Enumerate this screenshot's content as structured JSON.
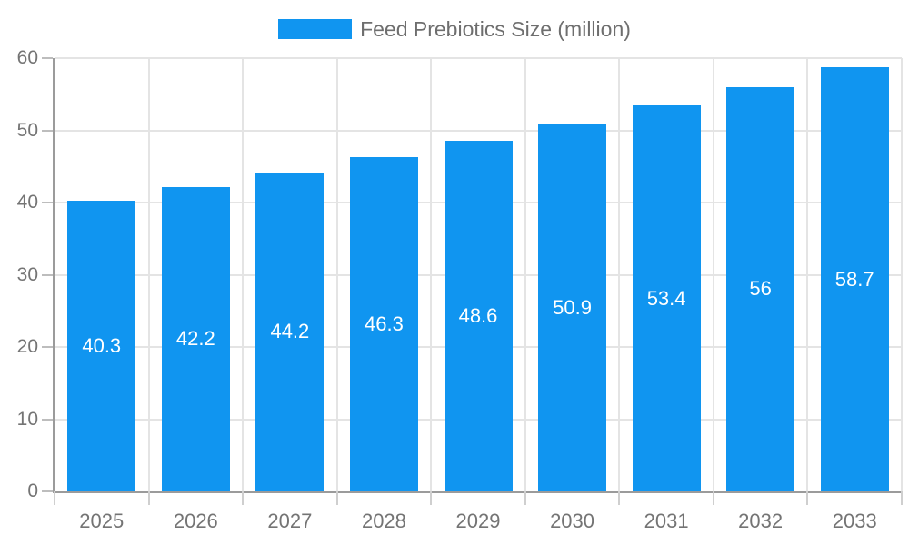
{
  "legend": {
    "label": "Feed Prebiotics Size (million)",
    "swatch_color": "#1095F0"
  },
  "chart_data": {
    "type": "bar",
    "title": "",
    "xlabel": "",
    "ylabel": "",
    "categories": [
      "2025",
      "2026",
      "2027",
      "2028",
      "2029",
      "2030",
      "2031",
      "2032",
      "2033"
    ],
    "series": [
      {
        "name": "Feed Prebiotics Size (million)",
        "values": [
          40.3,
          42.2,
          44.2,
          46.3,
          48.6,
          50.9,
          53.4,
          56,
          58.7
        ],
        "value_labels": [
          "40.3",
          "42.2",
          "44.2",
          "46.3",
          "48.6",
          "50.9",
          "53.4",
          "56",
          "58.7"
        ]
      }
    ],
    "ylim": [
      0,
      60
    ],
    "yticks": [
      0,
      10,
      20,
      30,
      40,
      50,
      60
    ],
    "grid": "horizontal lines at each y tick plus vertical lines at category boundaries",
    "legend_position": "top-center",
    "colors": {
      "bar": "#1095F0",
      "value_label": "#ffffff",
      "axis_line": "#9b9b9b",
      "gridline": "#e4e4e4",
      "tick_label": "#747474",
      "legend_text": "#6e6e6e",
      "background": "#ffffff"
    }
  }
}
